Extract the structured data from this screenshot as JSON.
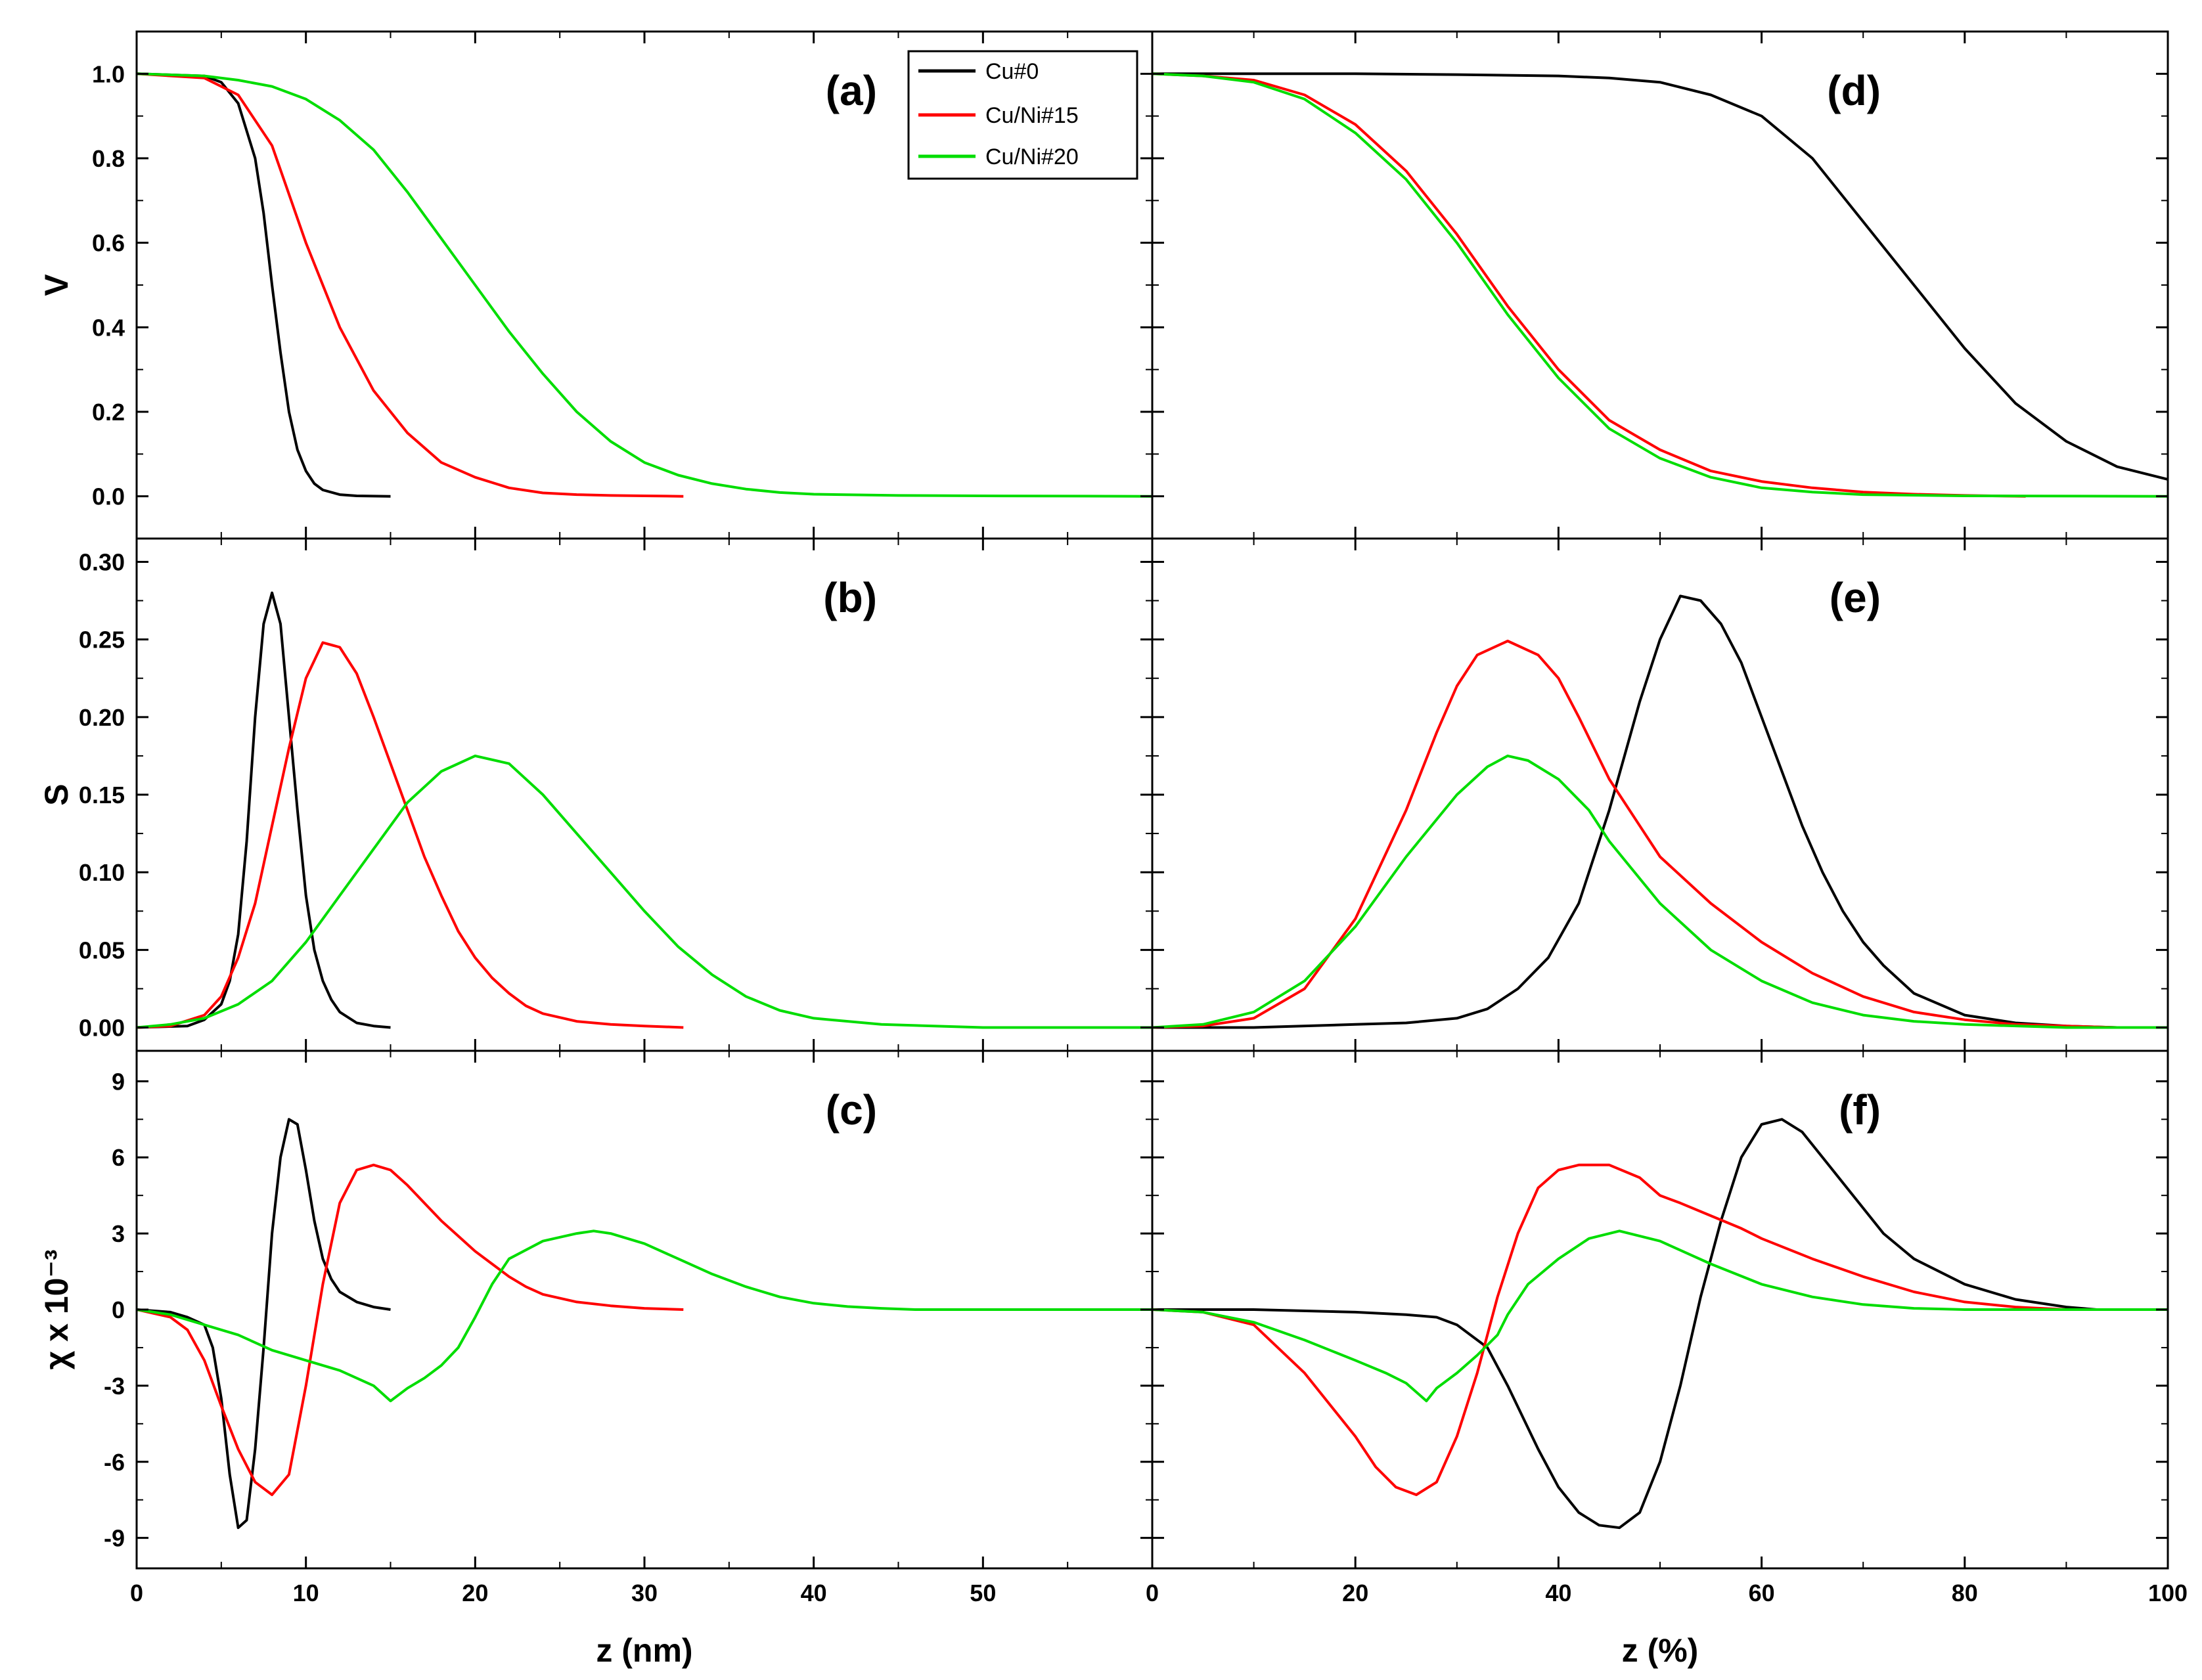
{
  "figure": {
    "legend": {
      "entries": [
        {
          "label": "Cu#0",
          "color": "#000000"
        },
        {
          "label": "Cu/Ni#15",
          "color": "#ff0000"
        },
        {
          "label": "Cu/Ni#20",
          "color": "#00dd00"
        }
      ]
    }
  },
  "chart_data": [
    {
      "type": "line",
      "panel": "(a)",
      "xlabel": "",
      "ylabel": "V",
      "xlim": [
        0,
        60
      ],
      "ylim": [
        -0.1,
        1.1
      ],
      "grid": false,
      "xticks": [],
      "yticks": [
        "0.0",
        "0.2",
        "0.4",
        "0.6",
        "0.8",
        "1.0"
      ],
      "series": [
        {
          "name": "Cu#0",
          "color": "#000000",
          "x": [
            0,
            4,
            5,
            6,
            7,
            7.5,
            8,
            8.5,
            9,
            9.5,
            10,
            10.5,
            11,
            12,
            13,
            15
          ],
          "y": [
            1.0,
            0.995,
            0.98,
            0.93,
            0.8,
            0.67,
            0.5,
            0.34,
            0.2,
            0.11,
            0.06,
            0.03,
            0.015,
            0.004,
            0.001,
            0.0
          ]
        },
        {
          "name": "Cu/Ni#15",
          "color": "#ff0000",
          "x": [
            0,
            4,
            6,
            8,
            10,
            11,
            12,
            14,
            16,
            18,
            20,
            22,
            24,
            26,
            28,
            30,
            32.3
          ],
          "y": [
            1.0,
            0.99,
            0.95,
            0.83,
            0.6,
            0.5,
            0.4,
            0.25,
            0.15,
            0.08,
            0.045,
            0.02,
            0.008,
            0.004,
            0.002,
            0.001,
            0.0
          ]
        },
        {
          "name": "Cu/Ni#20",
          "color": "#00dd00",
          "x": [
            0,
            4,
            6,
            8,
            10,
            12,
            14,
            16,
            18,
            20,
            22,
            24,
            26,
            28,
            30,
            32,
            34,
            36,
            38,
            40,
            45,
            50,
            60
          ],
          "y": [
            1.0,
            0.995,
            0.985,
            0.97,
            0.94,
            0.89,
            0.82,
            0.72,
            0.61,
            0.5,
            0.39,
            0.29,
            0.2,
            0.13,
            0.08,
            0.05,
            0.03,
            0.017,
            0.009,
            0.005,
            0.002,
            0.001,
            0.0
          ]
        }
      ]
    },
    {
      "type": "line",
      "panel": "(b)",
      "xlabel": "",
      "ylabel": "S",
      "xlim": [
        0,
        60
      ],
      "ylim": [
        -0.015,
        0.315
      ],
      "grid": false,
      "xticks": [],
      "yticks": [
        "0.00",
        "0.05",
        "0.10",
        "0.15",
        "0.20",
        "0.25",
        "0.30"
      ],
      "series": [
        {
          "name": "Cu#0",
          "color": "#000000",
          "x": [
            0,
            3,
            4,
            5,
            5.5,
            6,
            6.5,
            7,
            7.5,
            8,
            8.5,
            9,
            9.5,
            10,
            10.5,
            11,
            11.5,
            12,
            13,
            14,
            15
          ],
          "y": [
            0.0,
            0.001,
            0.005,
            0.015,
            0.03,
            0.06,
            0.12,
            0.2,
            0.26,
            0.28,
            0.26,
            0.2,
            0.14,
            0.085,
            0.05,
            0.03,
            0.018,
            0.01,
            0.003,
            0.001,
            0.0
          ]
        },
        {
          "name": "Cu/Ni#15",
          "color": "#ff0000",
          "x": [
            0,
            2,
            4,
            5,
            6,
            7,
            8,
            9,
            10,
            11,
            12,
            13,
            14,
            15,
            16,
            17,
            18,
            19,
            20,
            21,
            22,
            23,
            24,
            26,
            28,
            30,
            32.3
          ],
          "y": [
            0.0,
            0.001,
            0.008,
            0.02,
            0.045,
            0.08,
            0.13,
            0.18,
            0.225,
            0.248,
            0.245,
            0.228,
            0.2,
            0.17,
            0.14,
            0.11,
            0.085,
            0.062,
            0.045,
            0.032,
            0.022,
            0.014,
            0.009,
            0.004,
            0.002,
            0.001,
            0.0
          ]
        },
        {
          "name": "Cu/Ni#20",
          "color": "#00dd00",
          "x": [
            0,
            2,
            4,
            6,
            8,
            10,
            12,
            14,
            16,
            18,
            20,
            22,
            24,
            26,
            28,
            30,
            32,
            34,
            36,
            38,
            40,
            44,
            50,
            60
          ],
          "y": [
            0.0,
            0.002,
            0.006,
            0.015,
            0.03,
            0.055,
            0.085,
            0.115,
            0.145,
            0.165,
            0.175,
            0.17,
            0.15,
            0.125,
            0.1,
            0.075,
            0.052,
            0.034,
            0.02,
            0.011,
            0.006,
            0.002,
            0.0,
            0.0
          ]
        }
      ]
    },
    {
      "type": "line",
      "panel": "(c)",
      "xlabel": "z (nm)",
      "ylabel": "χ x 10⁻³",
      "xlim": [
        0,
        60
      ],
      "ylim": [
        -10.2,
        10.2
      ],
      "grid": false,
      "xticks": [
        "0",
        "10",
        "20",
        "30",
        "40",
        "50"
      ],
      "yticks": [
        "-9",
        "-6",
        "-3",
        "0",
        "3",
        "6",
        "9"
      ],
      "series": [
        {
          "name": "Cu#0",
          "color": "#000000",
          "x": [
            0,
            2,
            3,
            4,
            4.5,
            5,
            5.5,
            6,
            6.5,
            7,
            7.5,
            8,
            8.5,
            9,
            9.5,
            10,
            10.5,
            11,
            11.5,
            12,
            13,
            14,
            15
          ],
          "y": [
            0,
            -0.1,
            -0.3,
            -0.6,
            -1.5,
            -3.5,
            -6.5,
            -8.6,
            -8.3,
            -5.5,
            -1.5,
            3.0,
            6.0,
            7.5,
            7.3,
            5.5,
            3.5,
            2.0,
            1.2,
            0.7,
            0.3,
            0.1,
            0.0
          ]
        },
        {
          "name": "Cu/Ni#15",
          "color": "#ff0000",
          "x": [
            0,
            2,
            3,
            4,
            5,
            6,
            7,
            8,
            9,
            10,
            11,
            12,
            13,
            14,
            15,
            16,
            17,
            18,
            19,
            20,
            21,
            22,
            23,
            24,
            26,
            28,
            30,
            32.3
          ],
          "y": [
            0,
            -0.3,
            -0.8,
            -2.0,
            -3.8,
            -5.5,
            -6.8,
            -7.3,
            -6.5,
            -3.0,
            1.0,
            4.2,
            5.5,
            5.7,
            5.5,
            4.9,
            4.2,
            3.5,
            2.9,
            2.3,
            1.8,
            1.3,
            0.9,
            0.6,
            0.3,
            0.15,
            0.05,
            0.0
          ]
        },
        {
          "name": "Cu/Ni#20",
          "color": "#00dd00",
          "x": [
            0,
            2,
            4,
            6,
            8,
            10,
            12,
            14,
            15,
            16,
            17,
            18,
            19,
            20,
            21,
            22,
            24,
            26,
            27,
            28,
            30,
            32,
            34,
            36,
            38,
            40,
            42,
            44,
            46,
            50,
            60
          ],
          "y": [
            0,
            -0.2,
            -0.6,
            -1.0,
            -1.6,
            -2.0,
            -2.4,
            -3.0,
            -3.6,
            -3.1,
            -2.7,
            -2.2,
            -1.5,
            -0.3,
            1.0,
            2.0,
            2.7,
            3.0,
            3.1,
            3.0,
            2.6,
            2.0,
            1.4,
            0.9,
            0.5,
            0.25,
            0.12,
            0.05,
            0.0,
            0.0,
            0.0
          ]
        }
      ]
    },
    {
      "type": "line",
      "panel": "(d)",
      "xlabel": "",
      "ylabel": "",
      "xlim": [
        0,
        100
      ],
      "ylim": [
        -0.1,
        1.1
      ],
      "grid": false,
      "xticks": [],
      "yticks": [],
      "series": [
        {
          "name": "Cu#0",
          "color": "#000000",
          "x": [
            0,
            20,
            30,
            40,
            45,
            50,
            55,
            60,
            65,
            70,
            75,
            80,
            85,
            90,
            95,
            100
          ],
          "y": [
            1.0,
            1.0,
            0.998,
            0.995,
            0.99,
            0.98,
            0.95,
            0.9,
            0.8,
            0.65,
            0.5,
            0.35,
            0.22,
            0.13,
            0.07,
            0.04
          ]
        },
        {
          "name": "Cu/Ni#15",
          "color": "#ff0000",
          "x": [
            0,
            5,
            10,
            15,
            20,
            25,
            30,
            35,
            40,
            45,
            50,
            55,
            60,
            65,
            70,
            75,
            80,
            86
          ],
          "y": [
            1.0,
            0.995,
            0.985,
            0.95,
            0.88,
            0.77,
            0.62,
            0.45,
            0.3,
            0.18,
            0.11,
            0.06,
            0.035,
            0.02,
            0.01,
            0.005,
            0.002,
            0.0
          ]
        },
        {
          "name": "Cu/Ni#20",
          "color": "#00dd00",
          "x": [
            0,
            5,
            10,
            15,
            20,
            25,
            30,
            35,
            40,
            45,
            50,
            55,
            60,
            65,
            70,
            80,
            100
          ],
          "y": [
            1.0,
            0.995,
            0.98,
            0.94,
            0.86,
            0.75,
            0.6,
            0.43,
            0.28,
            0.16,
            0.09,
            0.045,
            0.02,
            0.01,
            0.004,
            0.001,
            0.0
          ]
        }
      ]
    },
    {
      "type": "line",
      "panel": "(e)",
      "xlabel": "",
      "ylabel": "",
      "xlim": [
        0,
        100
      ],
      "ylim": [
        -0.015,
        0.315
      ],
      "grid": false,
      "xticks": [],
      "yticks": [],
      "series": [
        {
          "name": "Cu#0",
          "color": "#000000",
          "x": [
            0,
            10,
            20,
            25,
            30,
            33,
            36,
            39,
            42,
            45,
            48,
            50,
            52,
            54,
            56,
            58,
            60,
            62,
            64,
            66,
            68,
            70,
            72,
            75,
            80,
            85,
            90,
            95
          ],
          "y": [
            0.0,
            0.0,
            0.002,
            0.003,
            0.006,
            0.012,
            0.025,
            0.045,
            0.08,
            0.14,
            0.21,
            0.25,
            0.278,
            0.275,
            0.26,
            0.235,
            0.2,
            0.165,
            0.13,
            0.1,
            0.075,
            0.055,
            0.04,
            0.022,
            0.008,
            0.003,
            0.001,
            0.0
          ]
        },
        {
          "name": "Cu/Ni#15",
          "color": "#ff0000",
          "x": [
            0,
            5,
            10,
            15,
            20,
            25,
            28,
            30,
            32,
            35,
            38,
            40,
            42,
            45,
            48,
            50,
            55,
            60,
            65,
            70,
            75,
            80,
            85,
            90,
            95
          ],
          "y": [
            0.0,
            0.001,
            0.006,
            0.025,
            0.07,
            0.14,
            0.19,
            0.22,
            0.24,
            0.249,
            0.24,
            0.225,
            0.2,
            0.16,
            0.13,
            0.11,
            0.08,
            0.055,
            0.035,
            0.02,
            0.01,
            0.005,
            0.002,
            0.001,
            0.0
          ]
        },
        {
          "name": "Cu/Ni#20",
          "color": "#00dd00",
          "x": [
            0,
            5,
            10,
            15,
            20,
            25,
            30,
            33,
            35,
            37,
            40,
            43,
            45,
            50,
            55,
            60,
            65,
            70,
            75,
            80,
            90,
            100
          ],
          "y": [
            0.0,
            0.002,
            0.01,
            0.03,
            0.065,
            0.11,
            0.15,
            0.168,
            0.175,
            0.172,
            0.16,
            0.14,
            0.12,
            0.08,
            0.05,
            0.03,
            0.016,
            0.008,
            0.004,
            0.002,
            0.0,
            0.0
          ]
        }
      ]
    },
    {
      "type": "line",
      "panel": "(f)",
      "xlabel": "z (%)",
      "ylabel": "",
      "xlim": [
        0,
        100
      ],
      "ylim": [
        -10.2,
        10.2
      ],
      "grid": false,
      "xticks": [
        "0",
        "20",
        "40",
        "60",
        "80",
        "100"
      ],
      "yticks": [],
      "series": [
        {
          "name": "Cu#0",
          "color": "#000000",
          "x": [
            0,
            10,
            20,
            25,
            28,
            30,
            33,
            35,
            38,
            40,
            42,
            44,
            46,
            48,
            50,
            52,
            54,
            56,
            58,
            60,
            62,
            64,
            66,
            68,
            70,
            72,
            75,
            80,
            85,
            90,
            93
          ],
          "y": [
            0.0,
            0.0,
            -0.1,
            -0.2,
            -0.3,
            -0.6,
            -1.5,
            -3.0,
            -5.5,
            -7.0,
            -8.0,
            -8.5,
            -8.6,
            -8.0,
            -6.0,
            -3.0,
            0.5,
            3.5,
            6.0,
            7.3,
            7.5,
            7.0,
            6.0,
            5.0,
            4.0,
            3.0,
            2.0,
            1.0,
            0.4,
            0.1,
            0.0
          ]
        },
        {
          "name": "Cu/Ni#15",
          "color": "#ff0000",
          "x": [
            0,
            5,
            10,
            15,
            20,
            22,
            24,
            26,
            28,
            30,
            32,
            34,
            36,
            38,
            40,
            42,
            45,
            48,
            50,
            52,
            55,
            58,
            60,
            65,
            70,
            75,
            80,
            85,
            90,
            93
          ],
          "y": [
            0.0,
            -0.1,
            -0.6,
            -2.5,
            -5.0,
            -6.2,
            -7.0,
            -7.3,
            -6.8,
            -5.0,
            -2.5,
            0.5,
            3.0,
            4.8,
            5.5,
            5.7,
            5.7,
            5.2,
            4.5,
            4.2,
            3.7,
            3.2,
            2.8,
            2.0,
            1.3,
            0.7,
            0.3,
            0.1,
            0.0,
            0.0
          ]
        },
        {
          "name": "Cu/Ni#20",
          "color": "#00dd00",
          "x": [
            0,
            5,
            10,
            15,
            20,
            23,
            25,
            27,
            28,
            30,
            32,
            34,
            35,
            37,
            40,
            43,
            46,
            50,
            55,
            60,
            65,
            70,
            75,
            80,
            85,
            90,
            100
          ],
          "y": [
            0.0,
            -0.1,
            -0.5,
            -1.2,
            -2.0,
            -2.5,
            -2.9,
            -3.6,
            -3.1,
            -2.5,
            -1.8,
            -1.0,
            -0.2,
            1.0,
            2.0,
            2.8,
            3.1,
            2.7,
            1.8,
            1.0,
            0.5,
            0.2,
            0.05,
            0.0,
            0.0,
            0.0,
            0.0
          ]
        }
      ]
    }
  ]
}
